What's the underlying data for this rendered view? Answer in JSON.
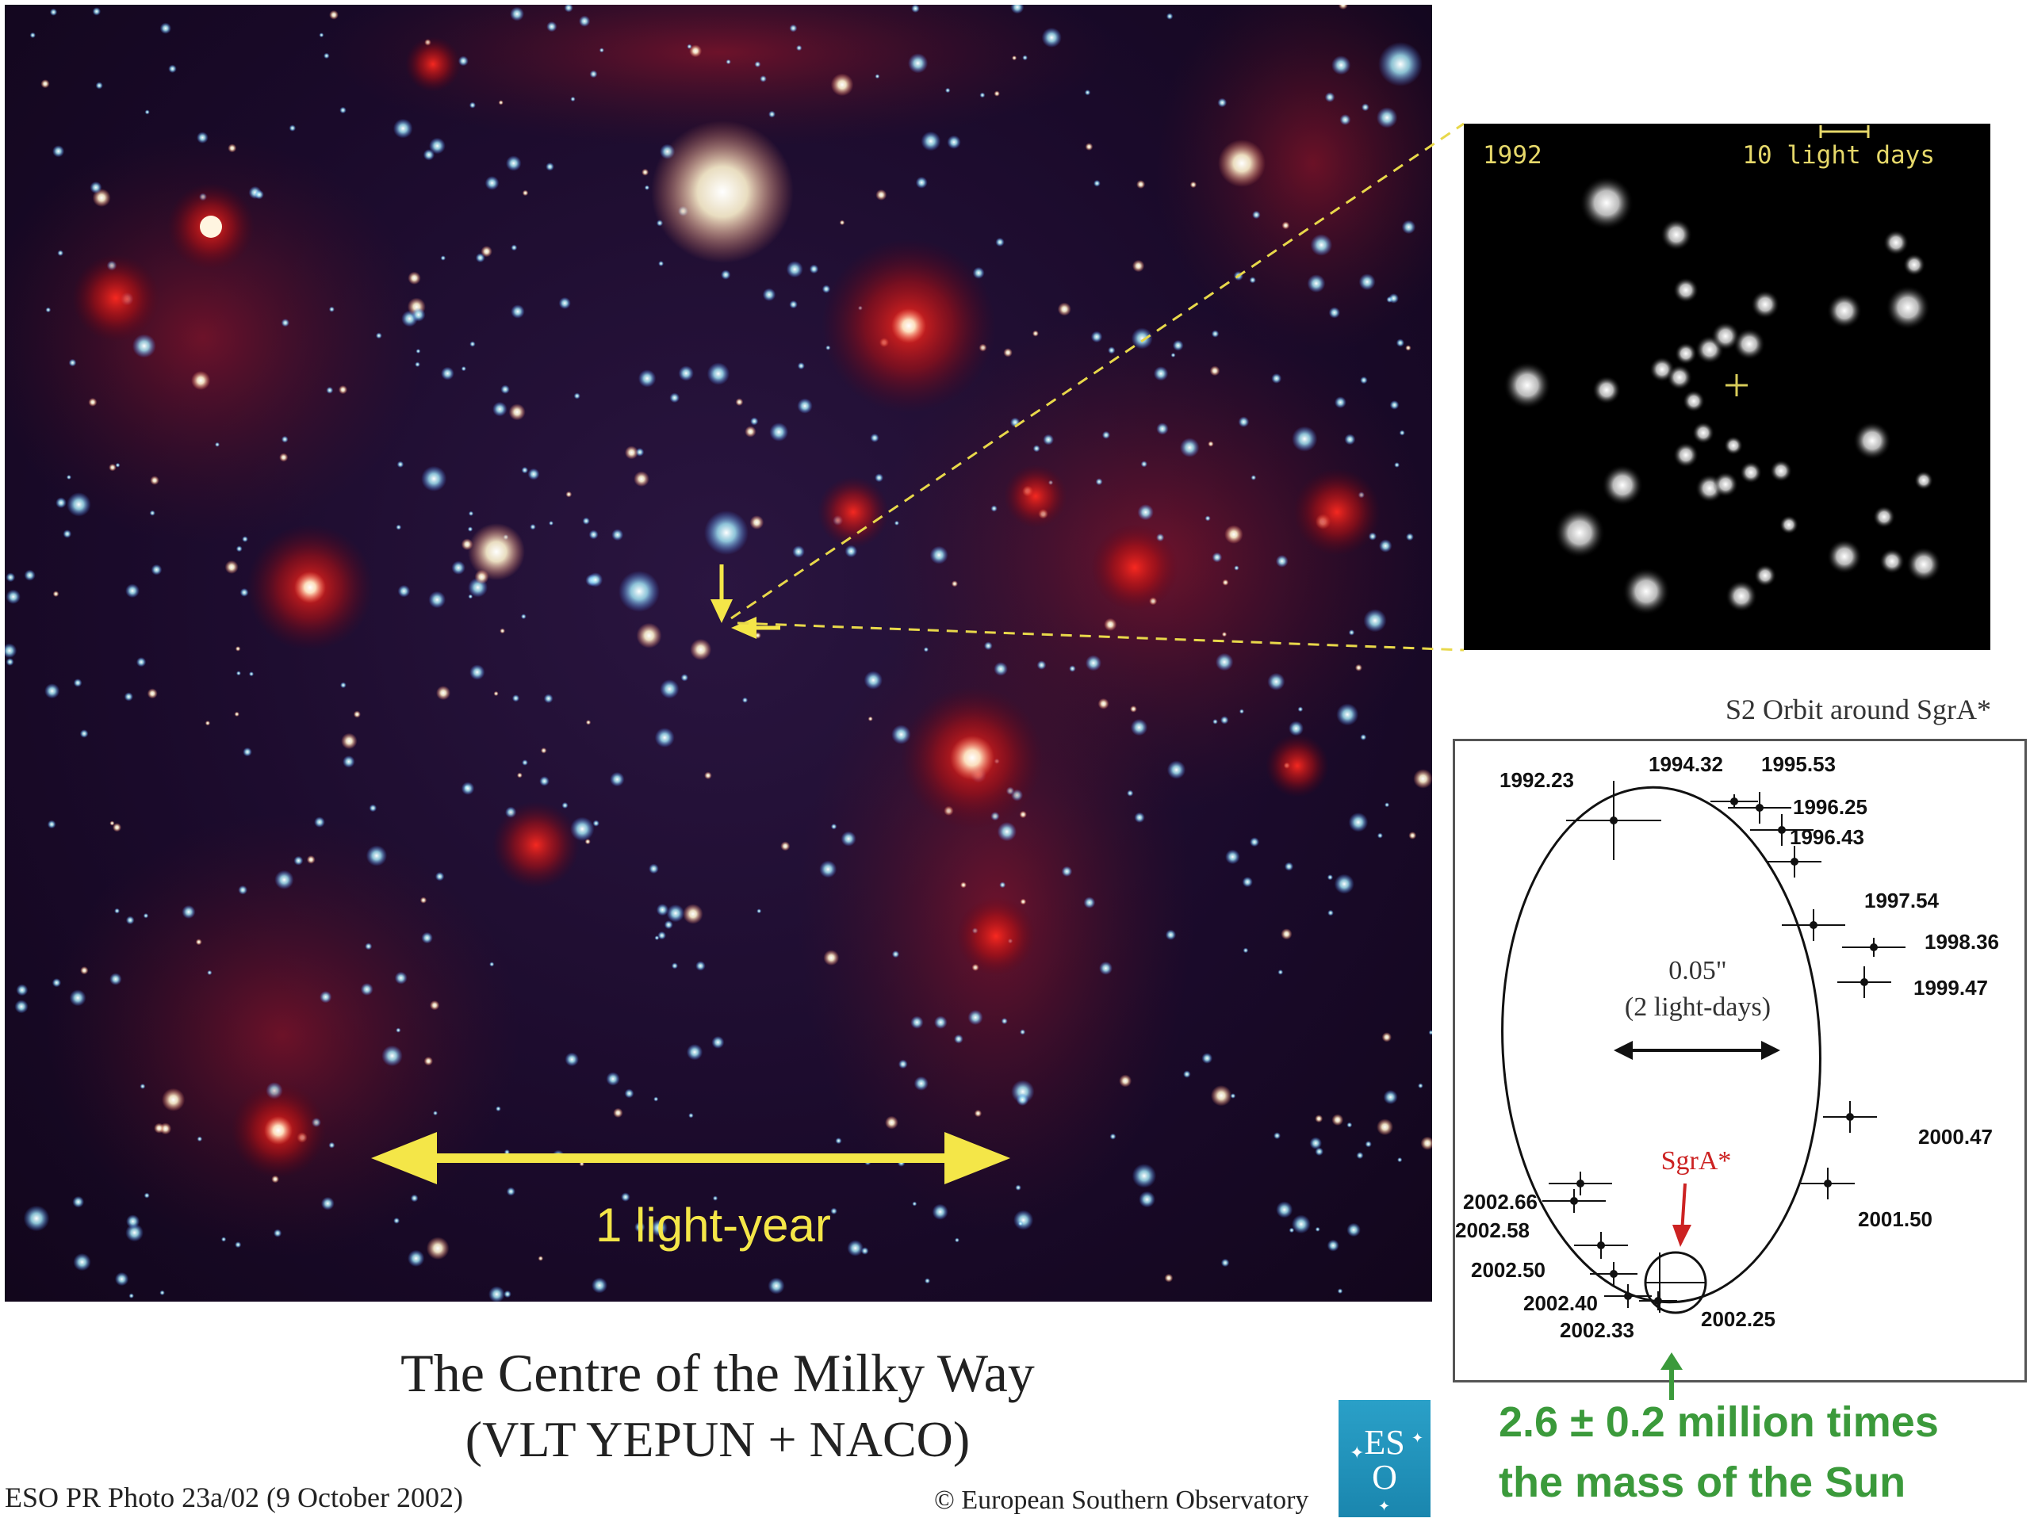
{
  "main_image": {
    "scale_label": "1 light-year"
  },
  "caption": {
    "title": "The Centre of the Milky Way",
    "subtitle": "(VLT YEPUN + NACO)"
  },
  "photo_id": "ESO PR Photo 23a/02 (9 October 2002)",
  "copyright": "© European Southern Observatory",
  "eso_logo": "ESO",
  "inset": {
    "year": "1992",
    "scale_label": "10 light days"
  },
  "orbit": {
    "title": "S2 Orbit around SgrA*",
    "scale_value": "0.05\"",
    "scale_note": "(2 light-days)",
    "sgra_label": "SgrA*",
    "epochs": [
      "1992.23",
      "1994.32",
      "1995.53",
      "1996.25",
      "1996.43",
      "1997.54",
      "1998.36",
      "1999.47",
      "2000.47",
      "2001.50",
      "2002.66",
      "2002.58",
      "2002.50",
      "2002.40",
      "2002.33",
      "2002.25"
    ]
  },
  "mass_text": {
    "line1": "2.6 ± 0.2 million times",
    "line2": "the mass of the Sun"
  },
  "colors": {
    "scale_arrow": "#f4e648",
    "dashed_line": "#e8d84a",
    "mass_text": "#3b9a3b",
    "sgra_arrow": "#cc2222"
  }
}
